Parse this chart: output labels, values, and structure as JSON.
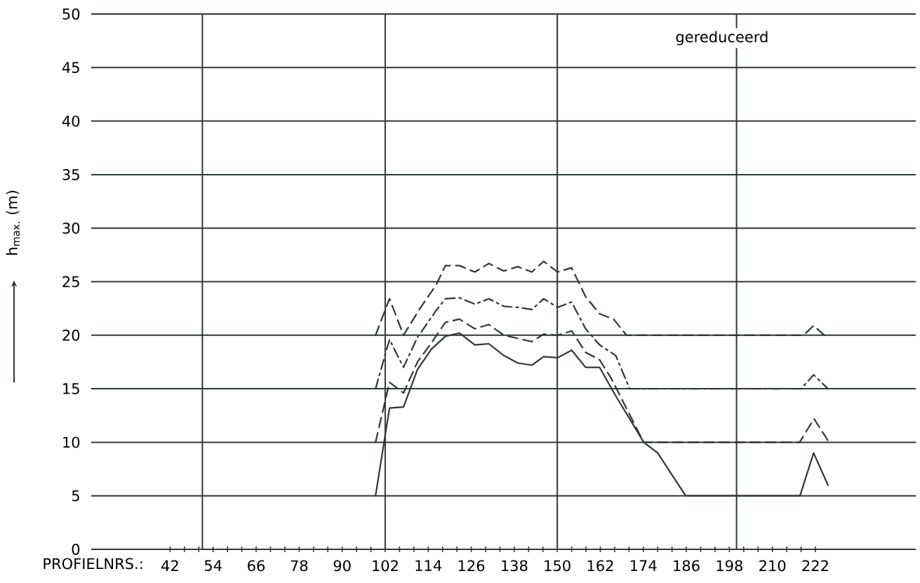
{
  "chart_data": {
    "type": "line",
    "xlabel": "PROFIELNRS.:",
    "ylabel": "h$_{max.}$ (m)",
    "annotations": [
      "gereduceerd"
    ],
    "xlim": [
      20,
      250
    ],
    "ylim": [
      0,
      50
    ],
    "xticks": [
      42,
      {
        "value": 46,
        "label": null
      },
      {
        "value": 50,
        "label": null
      },
      54,
      {
        "value": 58,
        "label": null
      },
      {
        "value": 62,
        "label": null
      },
      66,
      {
        "value": 70,
        "label": null
      },
      {
        "value": 74,
        "label": null
      },
      78,
      {
        "value": 82,
        "label": null
      },
      {
        "value": 86,
        "label": null
      },
      90,
      {
        "value": 94,
        "label": null
      },
      {
        "value": 98,
        "label": null
      },
      102,
      {
        "value": 106,
        "label": null
      },
      {
        "value": 110,
        "label": null
      },
      114,
      {
        "value": 118,
        "label": null
      },
      {
        "value": 122,
        "label": null
      },
      126,
      {
        "value": 130,
        "label": null
      },
      {
        "value": 134,
        "label": null
      },
      138,
      {
        "value": 142,
        "label": null
      },
      {
        "value": 146,
        "label": null
      },
      150,
      {
        "value": 154,
        "label": null
      },
      {
        "value": 158,
        "label": null
      },
      162,
      {
        "value": 166,
        "label": null
      },
      {
        "value": 170,
        "label": null
      },
      174,
      {
        "value": 178,
        "label": null
      },
      {
        "value": 182,
        "label": null
      },
      186,
      {
        "value": 190,
        "label": null
      },
      {
        "value": 194,
        "label": null
      },
      198,
      {
        "value": 202,
        "label": null
      },
      {
        "value": 206,
        "label": null
      },
      210,
      {
        "value": 214,
        "label": null
      },
      {
        "value": 218,
        "label": null
      },
      222
    ],
    "yticks": [
      0,
      5,
      10,
      15,
      20,
      25,
      30,
      35,
      40,
      45,
      50
    ],
    "grid": "y",
    "ref_lines": [
      {
        "axis": "x",
        "value": 51,
        "color": "#2f3833"
      },
      {
        "axis": "x",
        "value": 102,
        "color": "#2f3833"
      },
      {
        "axis": "x",
        "value": 150,
        "color": "#2f3833"
      },
      {
        "axis": "x",
        "value": 200,
        "color": "#2f3833"
      }
    ],
    "marker": "none",
    "series": [
      {
        "color": "#2f3833",
        "line_style": "solid",
        "x": [
          99.3,
          103.2,
          107.1,
          111.0,
          114.9,
          118.8,
          122.7,
          127.0,
          130.9,
          135.1,
          139.0,
          142.9,
          146.2,
          150.1,
          154.0,
          157.9,
          161.8,
          166.0,
          170.0,
          174.1,
          178.0,
          185.8,
          217.7,
          221.5,
          225.5
        ],
        "values": [
          5,
          13.2,
          13.3,
          16.8,
          18.7,
          19.9,
          20.2,
          19.1,
          19.2,
          18.1,
          17.4,
          17.2,
          18.0,
          17.9,
          18.6,
          17.0,
          17.0,
          14.5,
          12.3,
          10.0,
          9.0,
          5,
          5,
          9.0,
          6.0
        ]
      },
      {
        "color": "#2f3833",
        "line_style": "dashed",
        "x": [
          99.3,
          103.2,
          107.1,
          111.0,
          114.9,
          118.8,
          122.7,
          127.0,
          130.9,
          135.1,
          139.0,
          142.9,
          146.2,
          150.1,
          154.0,
          157.9,
          161.8,
          165.0,
          174.1,
          217.6,
          221.6,
          225.8
        ],
        "values": [
          10,
          15.6,
          14.6,
          17.5,
          19.3,
          21.2,
          21.5,
          20.6,
          21.0,
          20.0,
          19.7,
          19.4,
          20.1,
          20.0,
          20.4,
          18.4,
          17.7,
          16.0,
          10,
          10,
          12.2,
          10
        ]
      },
      {
        "color": "#2f3833",
        "line_style": "dashdot",
        "x": [
          99.3,
          103.2,
          107.1,
          111.0,
          116.2,
          118.8,
          122.7,
          127.0,
          130.9,
          135.1,
          139.0,
          142.9,
          146.2,
          150.1,
          154.0,
          157.9,
          161.8,
          166.3,
          170.2,
          218.0,
          221.5,
          225.5
        ],
        "values": [
          15,
          19.6,
          17.0,
          19.8,
          22.3,
          23.4,
          23.5,
          22.9,
          23.4,
          22.7,
          22.6,
          22.4,
          23.4,
          22.6,
          23.1,
          20.6,
          19.1,
          18.1,
          15,
          15,
          16.3,
          15
        ]
      },
      {
        "color": "#2f3833",
        "line_style": "dashed",
        "x": [
          99.3,
          103.2,
          107.1,
          111.7,
          116.2,
          118.8,
          122.7,
          127.0,
          130.9,
          135.1,
          139.0,
          142.9,
          146.2,
          150.1,
          154.0,
          157.9,
          161.8,
          165.7,
          169.3,
          218.7,
          221.5,
          224.5
        ],
        "values": [
          20,
          23.4,
          20.0,
          22.5,
          24.7,
          26.5,
          26.5,
          25.9,
          26.7,
          26.0,
          26.4,
          25.9,
          26.9,
          25.9,
          26.3,
          23.6,
          22.0,
          21.5,
          20,
          20,
          20.9,
          20
        ]
      }
    ]
  }
}
